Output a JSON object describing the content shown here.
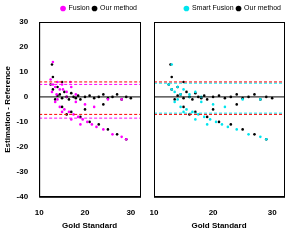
{
  "chart_data": [
    {
      "type": "scatter",
      "xlabel": "Gold Standard",
      "ylabel": "Estimation - Reference",
      "xlim": [
        10,
        32
      ],
      "xticks": [
        10,
        20,
        30
      ],
      "ylim": [
        -40,
        30
      ],
      "yticks": [
        -40,
        -30,
        -20,
        -10,
        0,
        10,
        20,
        30
      ],
      "grid": false,
      "legend": "upper right",
      "series": [
        {
          "name": "Fusion",
          "color": "#ff00ff",
          "marker": "circle",
          "x": [
            12.5,
            13,
            13.5,
            14,
            14.5,
            15,
            16,
            17,
            18,
            13.5,
            14.5,
            15.5,
            16.5,
            17.5,
            18.5,
            19.5,
            20.5,
            21.5,
            22.5,
            24,
            26,
            28,
            29,
            14,
            16,
            18,
            20,
            22,
            25,
            28,
            13,
            15,
            17,
            19,
            12.8,
            13.8,
            15.2,
            16.8
          ],
          "values": [
            7,
            5,
            4,
            6,
            3,
            5,
            2,
            4,
            1,
            -2,
            -4,
            -5,
            -6,
            -7,
            -8,
            -9,
            -10,
            -11,
            -12,
            -13,
            -15,
            -16,
            -17,
            -1,
            0,
            -2,
            -3,
            -4,
            -1,
            -1,
            14,
            -6,
            -9,
            -11,
            2,
            1,
            3,
            6
          ]
        },
        {
          "name": "Our method",
          "color": "#000000",
          "marker": "circle",
          "x": [
            12.5,
            13,
            13.5,
            14,
            14.5,
            15,
            15.5,
            16,
            16.5,
            17,
            17.5,
            18,
            18.5,
            19,
            20,
            21,
            22,
            23,
            24,
            25,
            26,
            27,
            28,
            29,
            30,
            13,
            14,
            15,
            17,
            19,
            21,
            23,
            25,
            27,
            29,
            16,
            20,
            24,
            12.8,
            15
          ],
          "values": [
            5,
            3,
            -1,
            0.5,
            1,
            -0.5,
            2,
            0,
            -1,
            1.5,
            0,
            -0.5,
            0.5,
            -1,
            0,
            0.5,
            -0.5,
            0,
            1,
            -0.5,
            0,
            1,
            -1,
            0,
            -0.5,
            8,
            4,
            -4,
            -6,
            -8,
            -10,
            -11,
            -13,
            -15,
            -17,
            -7,
            -5,
            -3,
            13,
            6
          ]
        }
      ],
      "hlines": [
        {
          "value": 0,
          "color": "#000000",
          "line_style": "solid"
        },
        {
          "value": 6,
          "color": "#ff0000",
          "line_style": "dashed"
        },
        {
          "value": -7,
          "color": "#ff0000",
          "line_style": "dashed"
        },
        {
          "value": 5,
          "color": "#ff00ff",
          "line_style": "dashed"
        },
        {
          "value": -8.5,
          "color": "#ff00ff",
          "line_style": "dashed"
        }
      ]
    },
    {
      "type": "scatter",
      "xlabel": "Gold Standard",
      "xlim": [
        10,
        32
      ],
      "xticks": [
        10,
        20,
        30
      ],
      "ylim": [
        -40,
        30
      ],
      "yticks": [
        -40,
        -30,
        -20,
        -10,
        0,
        10,
        20,
        30
      ],
      "grid": false,
      "legend": "upper right",
      "tick_labels": "x",
      "series": [
        {
          "name": "Smart Fusion",
          "color": "#00e5ee",
          "marker": "circle",
          "x": [
            12.5,
            13,
            13.5,
            14,
            14.5,
            15,
            16,
            17,
            18,
            13.5,
            14.5,
            15.5,
            16.5,
            17.5,
            18.5,
            19.5,
            20.5,
            21.5,
            22.5,
            24,
            26,
            28,
            29,
            14,
            16,
            18,
            20,
            22,
            25,
            28,
            13,
            15,
            17,
            19
          ],
          "values": [
            5,
            3,
            2,
            4,
            1,
            3,
            1,
            2,
            0,
            -2,
            -4,
            -5,
            -6,
            -7,
            -8,
            -9,
            -10,
            -11,
            -12,
            -13,
            -15,
            -16,
            -17,
            -1,
            0,
            -2,
            -3,
            -4,
            -1,
            -1,
            13,
            -6,
            -9,
            -11
          ]
        },
        {
          "name": "Our method",
          "color": "#000000",
          "marker": "circle",
          "x": [
            12.5,
            13,
            13.5,
            14,
            14.5,
            15,
            15.5,
            16,
            16.5,
            17,
            17.5,
            18,
            18.5,
            19,
            20,
            21,
            22,
            23,
            24,
            25,
            26,
            27,
            28,
            29,
            30,
            13,
            14,
            15,
            17,
            19,
            21,
            23,
            25,
            27,
            29,
            16,
            20,
            24,
            12.8,
            15
          ],
          "values": [
            5,
            3,
            -1,
            0.5,
            1,
            -0.5,
            2,
            0,
            -1,
            1.5,
            0,
            -0.5,
            0.5,
            -1,
            0,
            0.5,
            -0.5,
            0,
            1,
            -0.5,
            0,
            1,
            -1,
            0,
            -0.5,
            8,
            4,
            -4,
            -6,
            -8,
            -10,
            -11,
            -13,
            -15,
            -17,
            -7,
            -5,
            -3,
            13,
            6
          ]
        }
      ],
      "hlines": [
        {
          "value": 0,
          "color": "#000000",
          "line_style": "solid"
        },
        {
          "value": 6,
          "color": "#ff0000",
          "line_style": "dashed"
        },
        {
          "value": -7,
          "color": "#ff0000",
          "line_style": "dashed"
        },
        {
          "value": 5.5,
          "color": "#00e5ee",
          "line_style": "dashed"
        },
        {
          "value": -6.5,
          "color": "#00e5ee",
          "line_style": "dashed"
        }
      ]
    }
  ]
}
